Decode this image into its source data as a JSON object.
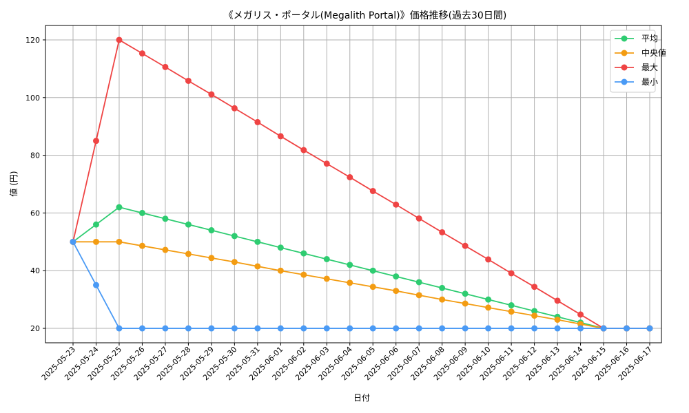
{
  "chart_data": {
    "type": "line",
    "title": "《メガリス・ポータル(Megalith Portal)》価格推移(過去30日間)",
    "xlabel": "日付",
    "ylabel": "値 (円)",
    "ylim": [
      15,
      125
    ],
    "yticks": [
      20,
      40,
      60,
      80,
      100,
      120
    ],
    "grid": true,
    "legend_position": "top-right",
    "categories": [
      "2025-05-23",
      "2025-05-24",
      "2025-05-25",
      "2025-05-26",
      "2025-05-27",
      "2025-05-28",
      "2025-05-29",
      "2025-05-30",
      "2025-05-31",
      "2025-06-01",
      "2025-06-02",
      "2025-06-03",
      "2025-06-04",
      "2025-06-05",
      "2025-06-06",
      "2025-06-07",
      "2025-06-08",
      "2025-06-09",
      "2025-06-10",
      "2025-06-11",
      "2025-06-12",
      "2025-06-13",
      "2025-06-14",
      "2025-06-15",
      "2025-06-16",
      "2025-06-17"
    ],
    "series": [
      {
        "name": "平均",
        "color": "#2ecc71",
        "values": [
          50,
          56,
          62,
          60,
          58,
          56,
          54,
          52,
          50,
          48,
          46,
          44,
          42,
          40,
          38,
          36,
          34,
          32,
          30,
          28,
          26,
          24,
          22,
          20,
          20,
          20
        ]
      },
      {
        "name": "中央値",
        "color": "#f39c12",
        "values": [
          50,
          50,
          50,
          48.6,
          47.2,
          45.8,
          44.4,
          43,
          41.5,
          40,
          38.6,
          37.2,
          35.8,
          34.4,
          33,
          31.5,
          30,
          28.6,
          27.2,
          25.8,
          24.4,
          23,
          21.5,
          20,
          20,
          20
        ]
      },
      {
        "name": "最大",
        "color": "#ef4444",
        "values": [
          50,
          85,
          120,
          115.3,
          110.6,
          105.8,
          101.1,
          96.3,
          91.5,
          86.6,
          81.8,
          77.1,
          72.4,
          67.6,
          62.9,
          58.1,
          53.3,
          48.6,
          43.9,
          39.1,
          34.4,
          29.6,
          24.8,
          20,
          20,
          20
        ]
      },
      {
        "name": "最小",
        "color": "#4a9af5",
        "values": [
          50,
          35,
          20,
          20,
          20,
          20,
          20,
          20,
          20,
          20,
          20,
          20,
          20,
          20,
          20,
          20,
          20,
          20,
          20,
          20,
          20,
          20,
          20,
          20,
          20,
          20
        ]
      }
    ]
  }
}
